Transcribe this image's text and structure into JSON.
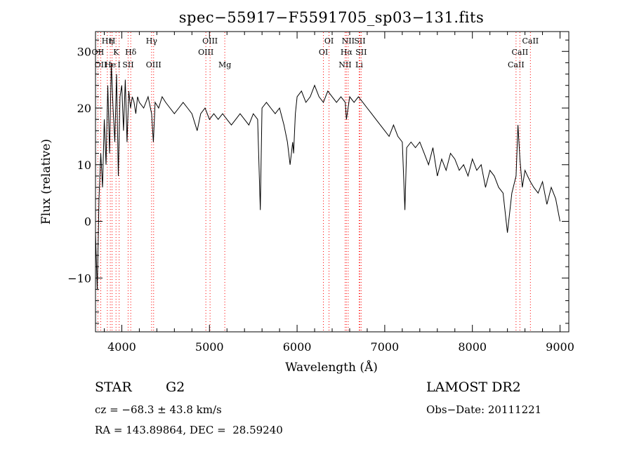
{
  "chart_data": {
    "type": "line",
    "title": "spec−55917−F5591705_sp03−131.fits",
    "xlabel": "Wavelength (Å)",
    "ylabel": "Flux (relative)",
    "xlim": [
      3700,
      9100
    ],
    "ylim": [
      -19.5,
      33.5
    ],
    "xticks": [
      4000,
      5000,
      6000,
      7000,
      8000,
      9000
    ],
    "yticks": [
      -10,
      0,
      10,
      20,
      30
    ],
    "grid": false,
    "series": [
      {
        "x": [
          3700,
          3720,
          3740,
          3760,
          3780,
          3800,
          3820,
          3840,
          3860,
          3880,
          3900,
          3920,
          3940,
          3960,
          3980,
          4000,
          4020,
          4040,
          4060,
          4080,
          4100,
          4120,
          4140,
          4160,
          4180,
          4200,
          4250,
          4300,
          4340,
          4360,
          4380,
          4420,
          4460,
          4500,
          4550,
          4600,
          4650,
          4700,
          4750,
          4800,
          4860,
          4900,
          4950,
          5000,
          5050,
          5100,
          5150,
          5200,
          5250,
          5300,
          5350,
          5400,
          5450,
          5500,
          5550,
          5580,
          5600,
          5650,
          5700,
          5750,
          5800,
          5850,
          5890,
          5920,
          5950,
          5960,
          5980,
          6000,
          6050,
          6100,
          6150,
          6200,
          6250,
          6300,
          6350,
          6400,
          6450,
          6500,
          6550,
          6563,
          6600,
          6650,
          6700,
          6750,
          6800,
          6850,
          6900,
          6950,
          7000,
          7050,
          7100,
          7150,
          7200,
          7230,
          7250,
          7300,
          7350,
          7400,
          7450,
          7500,
          7550,
          7600,
          7650,
          7700,
          7750,
          7800,
          7850,
          7900,
          7950,
          8000,
          8050,
          8100,
          8150,
          8200,
          8250,
          8300,
          8350,
          8400,
          8450,
          8498,
          8520,
          8542,
          8570,
          8600,
          8630,
          8662,
          8700,
          8750,
          8800,
          8850,
          8900,
          8950,
          9000
        ],
        "y": [
          -2,
          -12,
          4,
          12,
          6,
          18,
          10,
          24,
          12,
          28,
          20,
          14,
          26,
          8,
          22,
          24,
          16,
          25,
          14,
          23,
          20,
          22,
          21,
          19,
          22,
          21,
          20,
          22,
          19,
          14,
          21,
          20,
          22,
          21,
          20,
          19,
          20,
          21,
          20,
          19,
          16,
          19,
          20,
          18,
          19,
          18,
          19,
          18,
          17,
          18,
          19,
          18,
          17,
          19,
          18,
          2,
          20,
          21,
          20,
          19,
          20,
          17,
          14,
          10,
          14,
          12,
          19,
          22,
          23,
          21,
          22,
          24,
          22,
          21,
          23,
          22,
          21,
          22,
          21,
          18,
          22,
          21,
          22,
          21,
          20,
          19,
          18,
          17,
          16,
          15,
          17,
          15,
          14,
          2,
          13,
          14,
          13,
          14,
          12,
          10,
          13,
          8,
          11,
          9,
          12,
          11,
          9,
          10,
          8,
          11,
          9,
          10,
          6,
          9,
          8,
          6,
          5,
          -2,
          5,
          8,
          17,
          11,
          6,
          9,
          8,
          7,
          6,
          5,
          7,
          3,
          6,
          4,
          0
        ]
      }
    ],
    "lines": [
      {
        "x": 3727,
        "label": "OII",
        "row": 2
      },
      {
        "x": 3760,
        "label": "OII",
        "row": 3
      },
      {
        "x": 3835,
        "label": "Hη",
        "row": 1
      },
      {
        "x": 3869,
        "label": "He",
        "row": 3
      },
      {
        "x": 3889,
        "label": "H",
        "row": 1
      },
      {
        "x": 3934,
        "label": "K",
        "row": 2
      },
      {
        "x": 3970,
        "label": "I",
        "row": 3
      },
      {
        "x": 4072,
        "label": "SII",
        "row": 3
      },
      {
        "x": 4102,
        "label": "Hδ",
        "row": 2
      },
      {
        "x": 4340,
        "label": "Hγ",
        "row": 1
      },
      {
        "x": 4363,
        "label": "OIII",
        "row": 3
      },
      {
        "x": 4959,
        "label": "OIII",
        "row": 2
      },
      {
        "x": 5007,
        "label": "OIII",
        "row": 1
      },
      {
        "x": 5175,
        "label": "Mg",
        "row": 3
      },
      {
        "x": 6300,
        "label": "OI",
        "row": 2
      },
      {
        "x": 6364,
        "label": "OI",
        "row": 1
      },
      {
        "x": 6548,
        "label": "NII",
        "row": 3
      },
      {
        "x": 6563,
        "label": "Hα",
        "row": 2
      },
      {
        "x": 6583,
        "label": "NII",
        "row": 1
      },
      {
        "x": 6708,
        "label": "Li",
        "row": 3
      },
      {
        "x": 6716,
        "label": "SII",
        "row": 1
      },
      {
        "x": 6731,
        "label": "SII",
        "row": 2
      },
      {
        "x": 8498,
        "label": "CaII",
        "row": 3
      },
      {
        "x": 8542,
        "label": "CaII",
        "row": 2
      },
      {
        "x": 8662,
        "label": "CaII",
        "row": 1
      }
    ],
    "line_color": "#ff0000"
  },
  "info": {
    "class_label": "STAR",
    "subclass": "G2",
    "survey": "LAMOST DR2",
    "cz": "cz = −68.3 ± 43.8 km/s",
    "obs_date": "Obs−Date: 20111221",
    "radec": "RA = 143.89864, DEC =  28.59240"
  }
}
